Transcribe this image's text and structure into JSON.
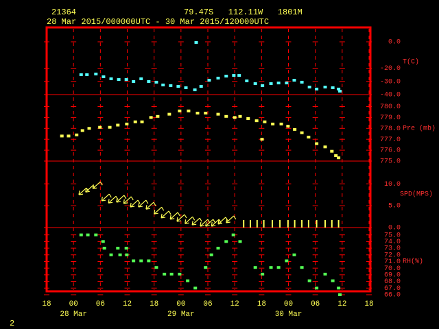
{
  "header": {
    "station": "21364",
    "location": "79.47S   112.11W   1801M",
    "period": "28 Mar 2015/000000UTC - 30 Mar 2015/120000UTC"
  },
  "page": "2",
  "chart_data": [
    {
      "type": "scatter",
      "ylabel": "T(C)",
      "color": "#55ffff",
      "ylim": [
        -40,
        10.9
      ],
      "yticks": [
        {
          "value": 0,
          "label": "0.0"
        },
        {
          "value": -20,
          "label": "-20.0"
        },
        {
          "value": -30,
          "label": "-30.0"
        },
        {
          "value": -40,
          "label": "-40.0"
        }
      ],
      "x": [
        7.7,
        9.0,
        11.0,
        12.7,
        14.4,
        16.1,
        17.8,
        19.4,
        21.1,
        22.8,
        24.5,
        26.0,
        27.7,
        29.4,
        31.1,
        33.1,
        33.4,
        34.5,
        36.3,
        38.3,
        40.1,
        41.8,
        43.0,
        44.7,
        46.6,
        48.2,
        50.1,
        51.8,
        53.6,
        55.3,
        57.0,
        58.7,
        60.3,
        62.2,
        63.9,
        65.2,
        65.5
      ],
      "values": [
        -24.9,
        -24.9,
        -24.4,
        -26.5,
        -28.0,
        -28.6,
        -28.6,
        -30.1,
        -28.0,
        -30.1,
        -30.6,
        -32.7,
        -33.2,
        -33.8,
        -34.8,
        -36.4,
        -0.5,
        -33.8,
        -29.1,
        -27.5,
        -26.0,
        -25.5,
        -25.5,
        -29.6,
        -31.7,
        -33.2,
        -31.7,
        -31.2,
        -31.2,
        -29.1,
        -30.6,
        -34.3,
        -35.8,
        -34.3,
        -34.8,
        -35.8,
        -37.4
      ]
    },
    {
      "type": "scatter",
      "ylabel": "Pre (mb)",
      "color": "#ffff55",
      "ylim": [
        775,
        781.1
      ],
      "yticks": [
        {
          "value": 780,
          "label": "780.0"
        },
        {
          "value": 779,
          "label": "779.0"
        },
        {
          "value": 778,
          "label": "778.0"
        },
        {
          "value": 777,
          "label": "777.0"
        },
        {
          "value": 776,
          "label": "776.0"
        },
        {
          "value": 775,
          "label": "775.0"
        }
      ],
      "x": [
        3.4,
        4.9,
        6.7,
        8.0,
        9.5,
        11.9,
        14.1,
        15.9,
        17.9,
        19.8,
        21.3,
        23.3,
        24.8,
        27.4,
        29.7,
        31.7,
        33.7,
        35.5,
        38.3,
        40.1,
        42.0,
        43.2,
        45.0,
        46.9,
        48.1,
        48.7,
        50.5,
        52.4,
        53.9,
        55.4,
        57.0,
        58.5,
        60.3,
        62.2,
        63.7,
        64.6,
        65.2
      ],
      "values": [
        777.3,
        777.3,
        777.4,
        777.8,
        778.0,
        778.1,
        778.1,
        778.3,
        778.4,
        778.6,
        778.6,
        779.0,
        779.1,
        779.3,
        779.6,
        779.6,
        779.4,
        779.4,
        779.3,
        779.1,
        779.0,
        779.1,
        778.9,
        778.7,
        777.0,
        778.6,
        778.4,
        778.4,
        778.2,
        777.9,
        777.6,
        777.2,
        776.6,
        776.3,
        775.9,
        775.5,
        775.3
      ]
    },
    {
      "type": "barb",
      "ylabel": "SPD(MPS)",
      "color": "#ffff55",
      "ylim": [
        0,
        15.2
      ],
      "yticks": [
        {
          "value": 10,
          "label": "10.0"
        },
        {
          "value": 5,
          "label": "5.0"
        },
        {
          "value": 0,
          "label": "0.0"
        }
      ],
      "x": [
        7.2,
        8.7,
        10.3,
        12.3,
        13.8,
        15.6,
        17.2,
        18.7,
        20.5,
        22.2,
        24.0,
        25.6,
        27.6,
        29.1,
        30.9,
        32.5,
        34.3,
        35.5,
        36.8,
        38.3,
        40.1,
        44.0,
        45.5,
        47.0,
        48.5,
        50.4,
        52.1,
        53.9,
        55.4,
        57.0,
        58.5,
        60.3,
        62.2,
        63.7,
        65.2
      ],
      "values": [
        7.5,
        8.1,
        8.9,
        6.1,
        5.6,
        5.8,
        5.5,
        4.7,
        4.7,
        4.2,
        3.1,
        2.2,
        1.9,
        1.4,
        0.9,
        0.6,
        0.3,
        0.3,
        0.3,
        0.8,
        1.1,
        0,
        0,
        0,
        0,
        0,
        0,
        0,
        0,
        0,
        0,
        0,
        0,
        0,
        0
      ]
    },
    {
      "type": "scatter",
      "ylabel": "RH(%)",
      "color": "#55ff55",
      "ylim": [
        66,
        76.1
      ],
      "yticks": [
        {
          "value": 75,
          "label": "75.0"
        },
        {
          "value": 74,
          "label": "74.0"
        },
        {
          "value": 73,
          "label": "73.0"
        },
        {
          "value": 72,
          "label": "72.0"
        },
        {
          "value": 71,
          "label": "71.0"
        },
        {
          "value": 70,
          "label": "70.0"
        },
        {
          "value": 69,
          "label": "69.0"
        },
        {
          "value": 68,
          "label": "68.0"
        },
        {
          "value": 67,
          "label": "67.0"
        },
        {
          "value": 66,
          "label": "66.0"
        }
      ],
      "x": [
        7.7,
        9.2,
        11.0,
        12.6,
        12.9,
        14.4,
        15.9,
        16.4,
        17.8,
        17.9,
        19.4,
        21.1,
        22.8,
        24.5,
        26.3,
        27.9,
        29.7,
        31.5,
        33.2,
        35.5,
        36.8,
        38.3,
        40.1,
        41.7,
        43.2,
        46.6,
        48.2,
        50.1,
        51.8,
        53.6,
        55.3,
        57.0,
        58.7,
        60.3,
        62.2,
        63.9,
        65.2,
        65.5
      ],
      "values": [
        75.0,
        75.0,
        75.0,
        74.0,
        73.0,
        72.0,
        73.0,
        72.0,
        73.0,
        72.0,
        71.1,
        71.1,
        71.1,
        70.1,
        69.1,
        69.1,
        69.1,
        68.1,
        67.0,
        70.1,
        72.0,
        73.0,
        74.0,
        75.0,
        74.0,
        70.1,
        69.1,
        70.1,
        70.1,
        71.1,
        72.0,
        70.1,
        68.1,
        67.0,
        69.1,
        68.1,
        67.0,
        66.0
      ],
      "xlim": [
        0,
        72
      ],
      "xticks": [
        {
          "value": 0,
          "label": "18"
        },
        {
          "value": 6,
          "label": "00"
        },
        {
          "value": 12,
          "label": "06"
        },
        {
          "value": 18,
          "label": "12"
        },
        {
          "value": 24,
          "label": "18"
        },
        {
          "value": 30,
          "label": "00"
        },
        {
          "value": 36,
          "label": "06"
        },
        {
          "value": 42,
          "label": "12"
        },
        {
          "value": 48,
          "label": "18"
        },
        {
          "value": 54,
          "label": "00"
        },
        {
          "value": 60,
          "label": "06"
        },
        {
          "value": 66,
          "label": "12"
        },
        {
          "value": 72,
          "label": "18"
        }
      ],
      "xdates": [
        {
          "value": 6,
          "label": "28 Mar"
        },
        {
          "value": 30,
          "label": "29 Mar"
        },
        {
          "value": 54,
          "label": "30 Mar"
        }
      ]
    }
  ]
}
